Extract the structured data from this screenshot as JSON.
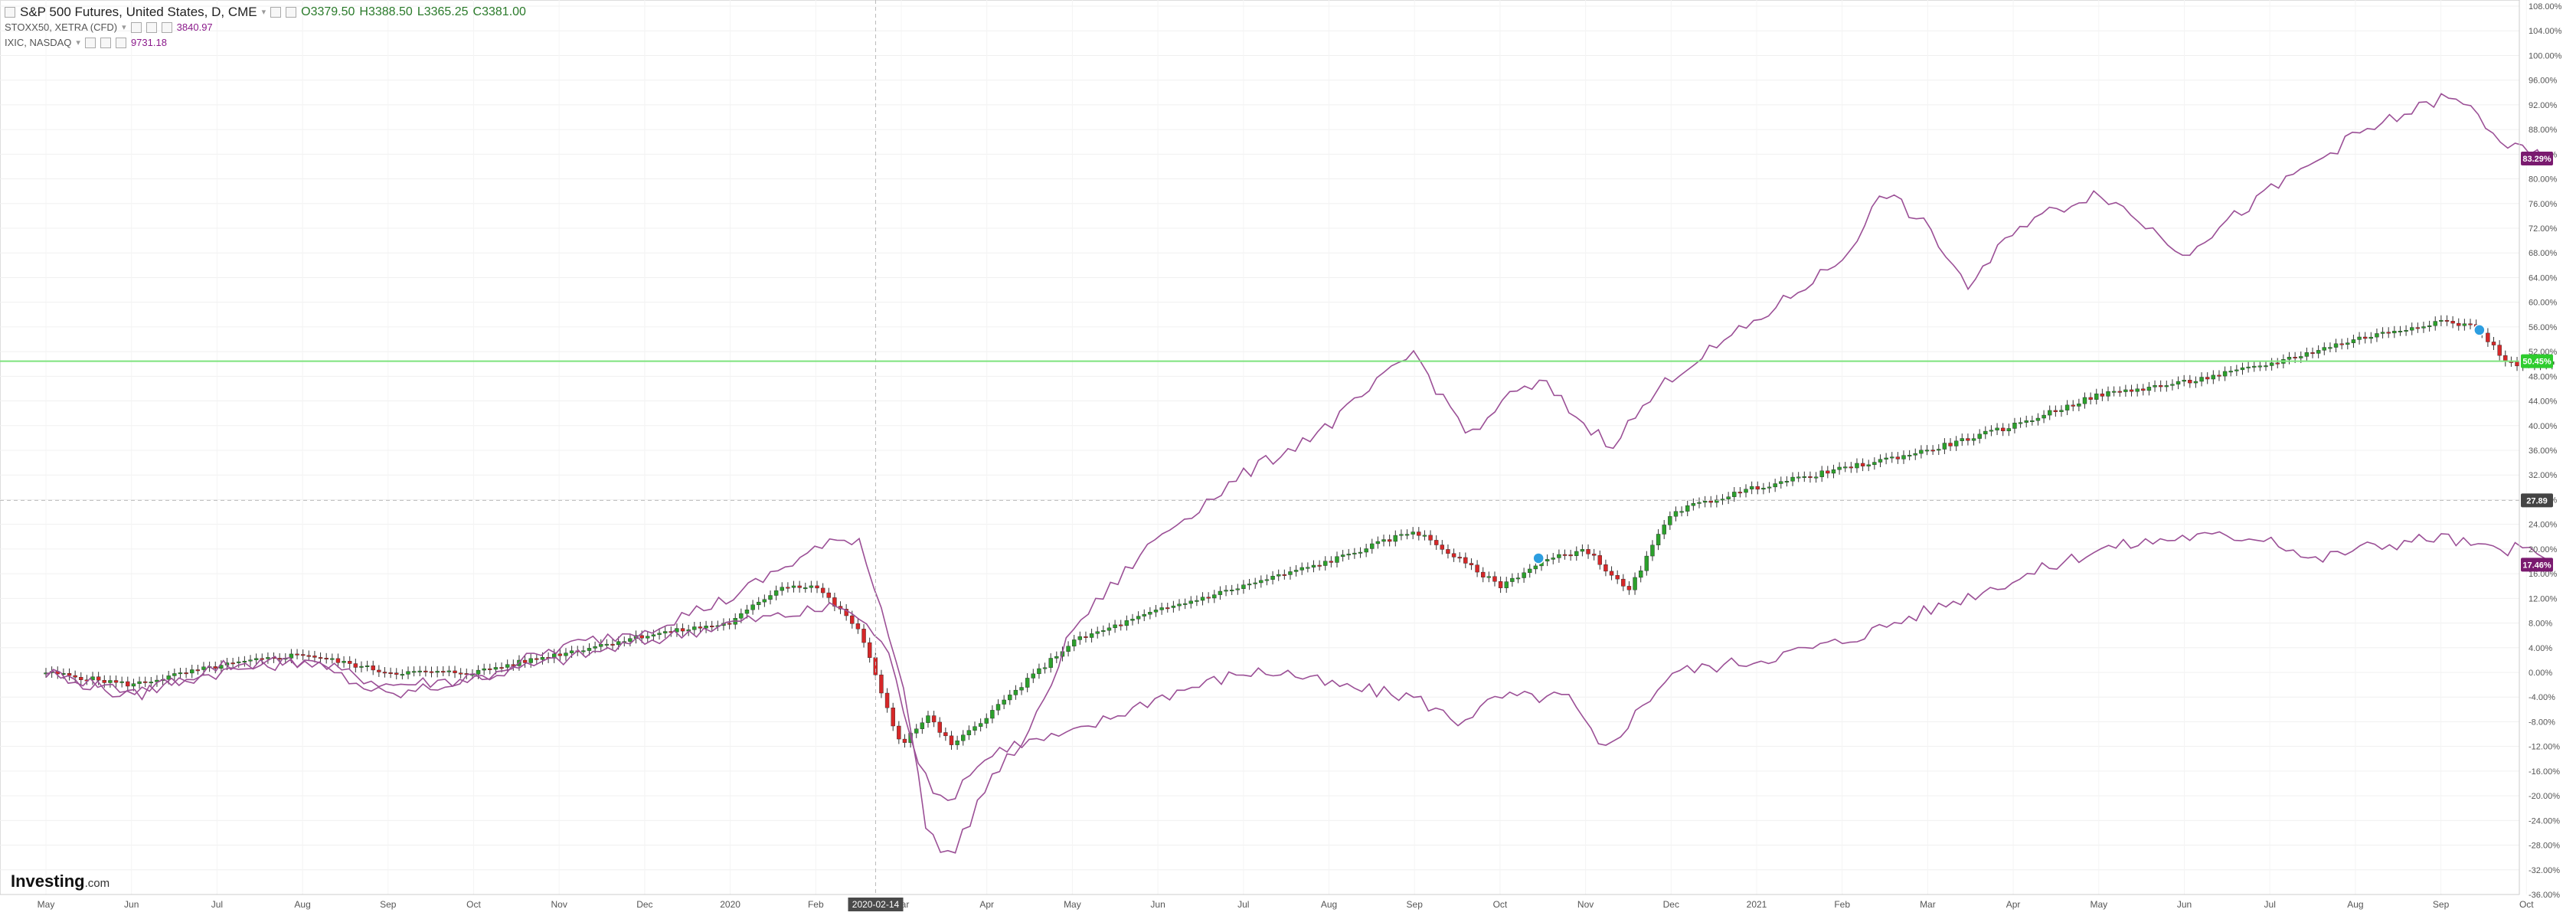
{
  "legend": {
    "main": {
      "title": "S&P 500 Futures, United States, D, CME",
      "o": "O3379.50",
      "h": "H3388.50",
      "l": "L3365.25",
      "c": "C3381.00"
    },
    "series2": {
      "label": "STOXX50, XETRA (CFD)",
      "value": "3840.97"
    },
    "series3": {
      "label": "IXIC, NASDAQ",
      "value": "9731.18"
    }
  },
  "logo": {
    "text": "Investing",
    "suffix": ".com"
  },
  "colors": {
    "up": "#2ca02c",
    "down": "#d62728",
    "overlay": "#9b4f96",
    "hline": "#7ee37e",
    "axis_text": "#555555"
  },
  "chart_data": {
    "type": "line",
    "y_unit": "%",
    "ylim": [
      -36,
      108
    ],
    "y_ticks": [
      "108.00%",
      "104.00%",
      "100.00%",
      "96.00%",
      "92.00%",
      "88.00%",
      "84.00%",
      "80.00%",
      "76.00%",
      "72.00%",
      "68.00%",
      "64.00%",
      "60.00%",
      "56.00%",
      "52.00%",
      "48.00%",
      "44.00%",
      "40.00%",
      "36.00%",
      "32.00%",
      "28.00%",
      "24.00%",
      "20.00%",
      "16.00%",
      "12.00%",
      "8.00%",
      "4.00%",
      "0.00%",
      "-4.00%",
      "-8.00%",
      "-12.00%",
      "-16.00%",
      "-20.00%",
      "-24.00%",
      "-28.00%",
      "-32.00%",
      "-36.00%"
    ],
    "x_ticks": [
      "May",
      "Jun",
      "Jul",
      "Aug",
      "Sep",
      "Oct",
      "Nov",
      "Dec",
      "2020",
      "Feb",
      "Mar",
      "Apr",
      "May",
      "Jun",
      "Jul",
      "Aug",
      "Sep",
      "Oct",
      "Nov",
      "Dec",
      "2021",
      "Feb",
      "Mar",
      "Apr",
      "May",
      "Jun",
      "Jul",
      "Aug",
      "Sep",
      "Oct"
    ],
    "crosshair": {
      "date_label": "2020-02-14",
      "x_index": 9.7,
      "y_value_label": "27.89",
      "y_value": 27.89
    },
    "horizontal_line": {
      "y_value": 50.45
    },
    "price_labels": [
      {
        "text": "83.29%",
        "value": 83.29,
        "color": "#7a1a6f"
      },
      {
        "text": "50.45%",
        "value": 50.45,
        "color": "#2ecc2e"
      },
      {
        "text": "27.89",
        "value": 27.89,
        "color": "#444444"
      },
      {
        "text": "17.46%",
        "value": 17.46,
        "color": "#7a1a6f"
      }
    ],
    "markers": [
      {
        "x_index": 17.45,
        "y_value": 18.5
      },
      {
        "x_index": 28.45,
        "y_value": 55.5
      }
    ],
    "series": [
      {
        "name": "S&P 500 Futures, United States, D, CME",
        "style": "candles",
        "x": [
          0,
          1,
          2,
          3,
          4,
          5,
          6,
          7,
          8,
          8.6,
          9,
          9.5,
          10,
          10.3,
          10.6,
          11,
          12,
          13,
          14,
          15,
          16,
          17,
          17.5,
          18,
          18.5,
          19,
          20,
          21,
          22,
          23,
          24,
          25,
          26,
          27,
          28,
          28.4,
          28.8,
          29.3
        ],
        "values": [
          0,
          -2,
          1,
          3,
          0,
          0,
          3,
          6,
          8,
          14,
          14,
          7,
          -12,
          -7,
          -12,
          -7,
          5,
          10,
          14,
          18,
          23,
          14,
          18,
          20,
          13,
          26,
          30,
          33,
          36,
          40,
          45,
          47,
          50,
          54,
          57,
          56,
          50,
          50
        ]
      },
      {
        "name": "STOXX50, XETRA (CFD)",
        "style": "line",
        "x": [
          0,
          1,
          2,
          3,
          4,
          5,
          6,
          7,
          8,
          9,
          9.3,
          9.8,
          10.2,
          10.5,
          10.8,
          11.2,
          12,
          13,
          14,
          14.5,
          15,
          16,
          16.5,
          17,
          17.3,
          17.8,
          18.2,
          19,
          20,
          21,
          22,
          23,
          24,
          25,
          26,
          26.5,
          27,
          28,
          28.5,
          29,
          29.3
        ],
        "values": [
          0,
          -3,
          0,
          2,
          -2,
          -1,
          2,
          5,
          8,
          10,
          11,
          5,
          -14,
          -22,
          -16,
          -12,
          -10,
          -4,
          0,
          0,
          -2,
          -4,
          -8,
          -4,
          -4,
          -4,
          -13,
          0,
          2,
          5,
          10,
          15,
          20,
          22,
          22,
          18,
          20,
          22,
          20,
          20,
          17.5
        ]
      },
      {
        "name": "IXIC, NASDAQ",
        "style": "line",
        "x": [
          0,
          1,
          2,
          3,
          4,
          5,
          6,
          7,
          8,
          9,
          9.5,
          10,
          10.3,
          10.6,
          11,
          11.5,
          12,
          13,
          14,
          15,
          16,
          16.3,
          16.7,
          17,
          17.5,
          18,
          18.3,
          19,
          20,
          21,
          21.5,
          22,
          22.5,
          23,
          24,
          25,
          26,
          27,
          28,
          28.3,
          28.8,
          29.3
        ],
        "values": [
          0,
          -4,
          1,
          2,
          -4,
          -1,
          4,
          7,
          12,
          20,
          22,
          0,
          -26,
          -30,
          -18,
          -10,
          7,
          22,
          32,
          40,
          52,
          45,
          38,
          44,
          47,
          40,
          37,
          48,
          57,
          67,
          78,
          72,
          62,
          72,
          78,
          68,
          78,
          87,
          93,
          92,
          85,
          83
        ]
      }
    ]
  }
}
